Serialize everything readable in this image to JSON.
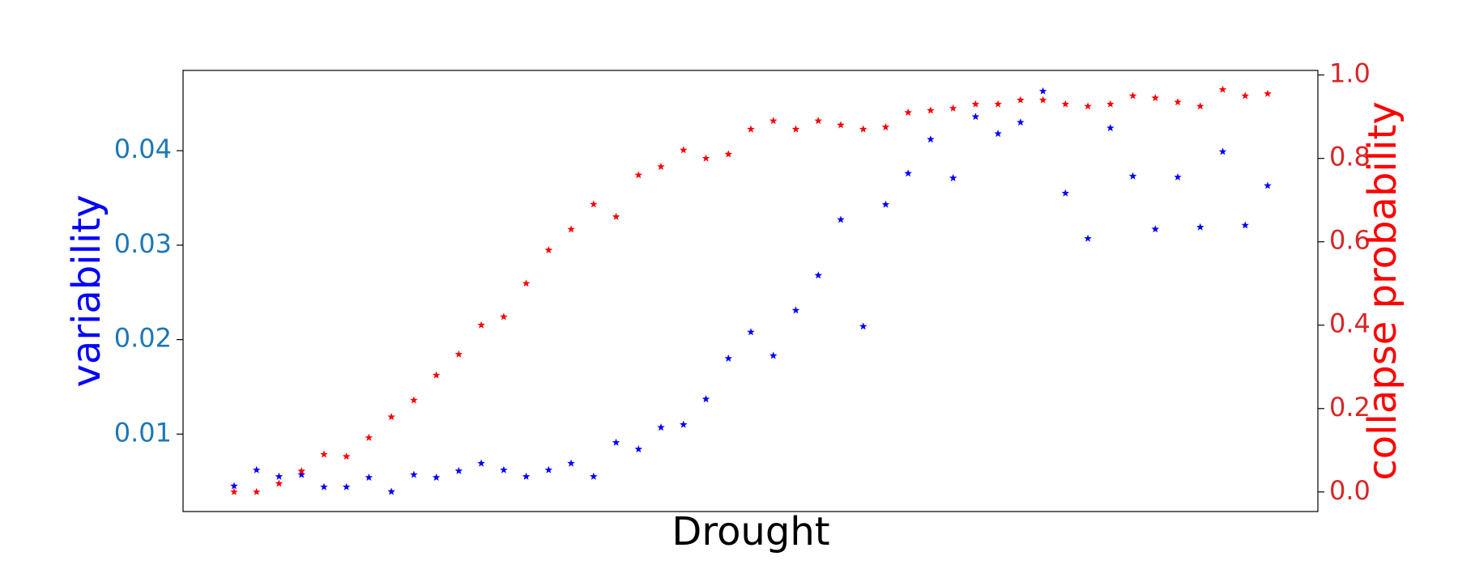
{
  "chart_data": {
    "type": "scatter",
    "xlabel": "Drought",
    "ylabel": "variability",
    "y2label": "collapse probability",
    "ylabel_color": "#0000ff",
    "y2label_color": "#ff0000",
    "ytick_color": "#1f77b4",
    "y2tick_color": "#d62728",
    "ylim": [
      0.0018,
      0.0485
    ],
    "yticks": [
      0.01,
      0.02,
      0.03,
      0.04
    ],
    "y2lim": [
      -0.047,
      1.011
    ],
    "y2ticks": [
      {
        "value": 0,
        "label": "0.0"
      },
      0.2,
      0.4,
      0.6,
      0.8,
      {
        "value": 1,
        "label": "1.0"
      }
    ],
    "marker": "star",
    "series": [
      {
        "color": "#0000ff",
        "values": [
          0.0045,
          0.0062,
          0.0055,
          0.0057,
          0.0044,
          0.0044,
          0.0054,
          0.0039,
          0.0057,
          0.0054,
          0.0061,
          0.0069,
          0.0062,
          0.0055,
          0.0062,
          0.0069,
          0.0055,
          0.0091,
          0.0084,
          0.0107,
          0.011,
          0.0137,
          0.018,
          0.0208,
          0.0183,
          0.0231,
          0.0268,
          0.0327,
          0.0214,
          0.0343,
          0.0376,
          0.0412,
          0.0371,
          0.0436,
          0.0418,
          0.043,
          0.0463,
          0.0355,
          0.0307,
          0.0424,
          0.0373,
          0.0317,
          0.0372,
          0.0319,
          0.0399,
          0.0321,
          0.0363
        ]
      },
      {
        "color": "#ff0000",
        "axis": "y2",
        "values": [
          0.0,
          0.0,
          0.02,
          0.05,
          0.09,
          0.085,
          0.13,
          0.18,
          0.22,
          0.28,
          0.33,
          0.4,
          0.42,
          0.5,
          0.58,
          0.63,
          0.69,
          0.66,
          0.76,
          0.78,
          0.82,
          0.8,
          0.81,
          0.87,
          0.89,
          0.87,
          0.89,
          0.88,
          0.87,
          0.875,
          0.91,
          0.915,
          0.92,
          0.93,
          0.93,
          0.94,
          0.94,
          0.93,
          0.925,
          0.93,
          0.95,
          0.945,
          0.935,
          0.925,
          0.965,
          0.95,
          0.955
        ]
      }
    ]
  }
}
